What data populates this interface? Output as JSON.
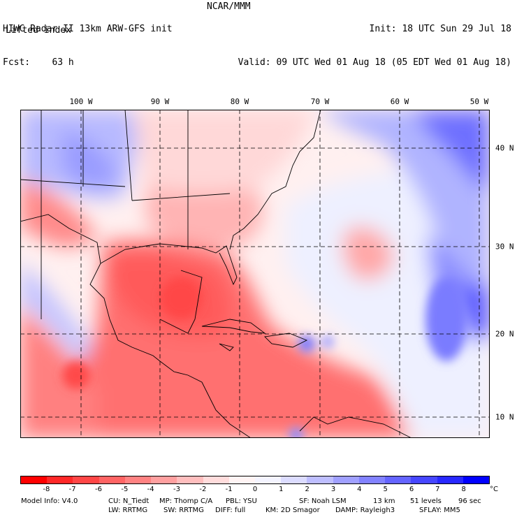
{
  "header": {
    "title_line": "HIWC Radar II 13km ARW-GFS init",
    "forecast_line": "Fcst:    63 h",
    "center": "NCAR/MMM",
    "init": "Init: 18 UTC Sun 29 Jul 18",
    "valid": "Valid: 09 UTC Wed 01 Aug 18 (05 EDT Wed 01 Aug 18)",
    "field_name": "Lifted index"
  },
  "axes": {
    "lon_labels": [
      "100 W",
      "90 W",
      "80 W",
      "70 W",
      "60 W",
      "50 W"
    ],
    "lat_labels": [
      "40 N",
      "30 N",
      "20 N",
      "10 N"
    ]
  },
  "colorbar": {
    "ticks": [
      "-8",
      "-7",
      "-6",
      "-5",
      "-4",
      "-3",
      "-2",
      "-1",
      "0",
      "1",
      "2",
      "3",
      "4",
      "5",
      "6",
      "7",
      "8"
    ],
    "unit": "°C",
    "colors": [
      "#ff0000",
      "#ff2828",
      "#ff4646",
      "#ff6464",
      "#ff8282",
      "#ffa0a0",
      "#ffbebe",
      "#ffdcdc",
      "#fff4f4",
      "#f4f4ff",
      "#dcdcff",
      "#bebeff",
      "#a0a0ff",
      "#8282ff",
      "#6464ff",
      "#4646ff",
      "#2828ff",
      "#0000ff"
    ]
  },
  "footer": {
    "model_info": "Model Info: V4.0",
    "cu": "CU: N_Tiedt",
    "mp": "MP: Thomp C/A",
    "pbl": "PBL: YSU",
    "sf": "SF: Noah LSM",
    "res": "13 km",
    "levels": "51 levels",
    "dt": "96 sec",
    "lw": "LW: RRTMG",
    "sw": "SW: RRTMG",
    "diff": "DIFF: full",
    "km": "KM: 2D Smagor",
    "damp": "DAMP: Rayleigh3",
    "sflay": "SFLAY: MM5"
  },
  "map_colors": {
    "land_outline": "#000000",
    "ocean_warm": "#ffb4b4",
    "ocean_neutral": "#f4f4ff",
    "cold": "#8282ff",
    "hot": "#ff5050"
  }
}
